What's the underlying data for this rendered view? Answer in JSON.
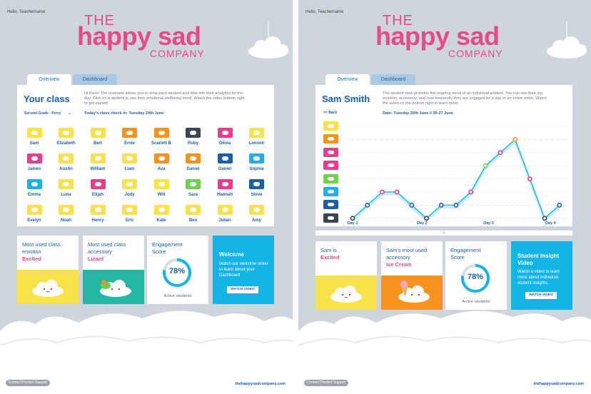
{
  "brand": {
    "the": "THE",
    "main": "happy sad",
    "company": "COMPANY",
    "url": "thehappysadcompany.com"
  },
  "colors": {
    "pink": "#e64b86",
    "blue": "#1b5fa8",
    "cyan": "#13b4e6",
    "yellow": "#f7e349",
    "orange": "#f7931d",
    "teal": "#23b7a4"
  },
  "footer": {
    "support": "Contact Product Support"
  },
  "left": {
    "greeting": "Hello, Teachername",
    "tabs": [
      "Overview",
      "Dashboard"
    ],
    "title": "Your class",
    "intro": "Hi there! The overview allows you to view each student and dive into their analytics for the day. Click on a student to see their emotional wellbeing trend. Watch the video bottom right to get started.",
    "class_select": "Second Grade - Perry",
    "checkin": "Today's class check in: Tuesday 20th June",
    "students": [
      {
        "name": "Sam",
        "color": "#f7e349"
      },
      {
        "name": "Elizabeth",
        "color": "#f7e349"
      },
      {
        "name": "Bert",
        "color": "#f7e349"
      },
      {
        "name": "Ernie",
        "color": "#f7931d"
      },
      {
        "name": "Scarlett B",
        "color": "#f7931d"
      },
      {
        "name": "Ruby",
        "color": "#3a4452"
      },
      {
        "name": "Olivia",
        "color": "#ec3d8c"
      },
      {
        "name": "Lennon",
        "color": "#f7e349"
      },
      {
        "name": "James",
        "color": "#ec3d8c"
      },
      {
        "name": "Austin",
        "color": "#f7e349"
      },
      {
        "name": "William",
        "color": "#f7e349"
      },
      {
        "name": "Liam",
        "color": "#f7e349"
      },
      {
        "name": "Ava",
        "color": "#f7931d"
      },
      {
        "name": "Daniel",
        "color": "#f7931d"
      },
      {
        "name": "Daniel",
        "color": "#1b5fa8"
      },
      {
        "name": "Sophia",
        "color": "#23aee6"
      },
      {
        "name": "Emma",
        "color": "#23aee6"
      },
      {
        "name": "Luna",
        "color": "#f7e349"
      },
      {
        "name": "Elijah",
        "color": "#ec3d8c"
      },
      {
        "name": "Jody",
        "color": "#f7e349"
      },
      {
        "name": "Will",
        "color": "#f7e349"
      },
      {
        "name": "Sara",
        "color": "#6ed24f"
      },
      {
        "name": "Hannah",
        "color": "#ec3d8c"
      },
      {
        "name": "Steve",
        "color": "#1b5fa8"
      },
      {
        "name": "Evelyn",
        "color": "#f7e349"
      },
      {
        "name": "Noah",
        "color": "#f7e349"
      },
      {
        "name": "Henry",
        "color": "#f7e349"
      },
      {
        "name": "Eric",
        "color": "#f7e349"
      },
      {
        "name": "Kate",
        "color": "#f7e349"
      },
      {
        "name": "Ben",
        "color": "#f7e349"
      },
      {
        "name": "Julian",
        "color": "#f7e349"
      },
      {
        "name": "Amy",
        "color": "#f7e349"
      }
    ],
    "stat1": {
      "title": "Most used class emotion",
      "value": "Excited"
    },
    "stat2": {
      "title": "Most used class accessory",
      "value": "Lizard"
    },
    "engagement": {
      "title": "Engagement Score",
      "value": "78%",
      "fraction": 0.78,
      "caption": "Active students"
    },
    "video": {
      "title": "Welcome",
      "body": "Watch our welcome video to learn about your Dashboard",
      "button": "WATCH VIDEO"
    }
  },
  "right": {
    "greeting": "Hello, Teachername",
    "tabs": [
      "Overview",
      "Dashboard"
    ],
    "title": "Sam Smith",
    "intro": "The student view provides the ongoing trend of an individual student. You can see their top emotion, accessory, and how frequently they are engaged for a day or an entire week. Watch the video on the bottom right to learn more.",
    "back": "<< Back",
    "date": "Date: Tuesday 20th June // 20-27 June",
    "mood_scale": [
      "#f7e349",
      "#f7931d",
      "#ec3d8c",
      "#ec3d8c",
      "#6ed24f",
      "#23aee6",
      "#1b5fa8",
      "#3a4452"
    ],
    "stat1": {
      "title": "Sam is",
      "value": "Excited"
    },
    "stat2": {
      "title": "Sam's most used accessory",
      "value": "Ice Cream"
    },
    "engagement": {
      "title": "Engagement Score",
      "value": "78%",
      "fraction": 0.78,
      "caption": "Active students"
    },
    "video": {
      "title": "Student Insight Video",
      "body": "Watch a video to learn more about individual student insights.",
      "button": "WATCH VIDEO"
    }
  },
  "chart_data": {
    "type": "line",
    "title": "Sam Smith",
    "x_ticks": [
      "Day 1",
      "Day 2",
      "Day 3",
      "Day 4"
    ],
    "ylim": [
      0,
      7
    ],
    "y_levels": [
      "#f7e349",
      "#f7931d",
      "#ec3d8c",
      "#ec3d8c",
      "#6ed24f",
      "#23aee6",
      "#1b5fa8",
      "#3a4452"
    ],
    "series": [
      {
        "name": "Sam Smith",
        "x": [
          0,
          1,
          2,
          3,
          4,
          5,
          6,
          7,
          8,
          9,
          10,
          11,
          12,
          13,
          14
        ],
        "values": [
          0,
          1,
          2,
          2,
          1,
          0,
          1,
          1,
          2,
          4,
          5,
          6,
          3,
          0,
          1
        ],
        "point_colors": [
          "#3a4452",
          "#1b5fa8",
          "#ec3d8c",
          "#ec3d8c",
          "#1b5fa8",
          "#3a4452",
          "#1b5fa8",
          "#1b5fa8",
          "#ec3d8c",
          "#6ed24f",
          "#ec3d8c",
          "#f7931d",
          "#ec3d8c",
          "#3a4452",
          "#1b5fa8"
        ]
      }
    ]
  }
}
